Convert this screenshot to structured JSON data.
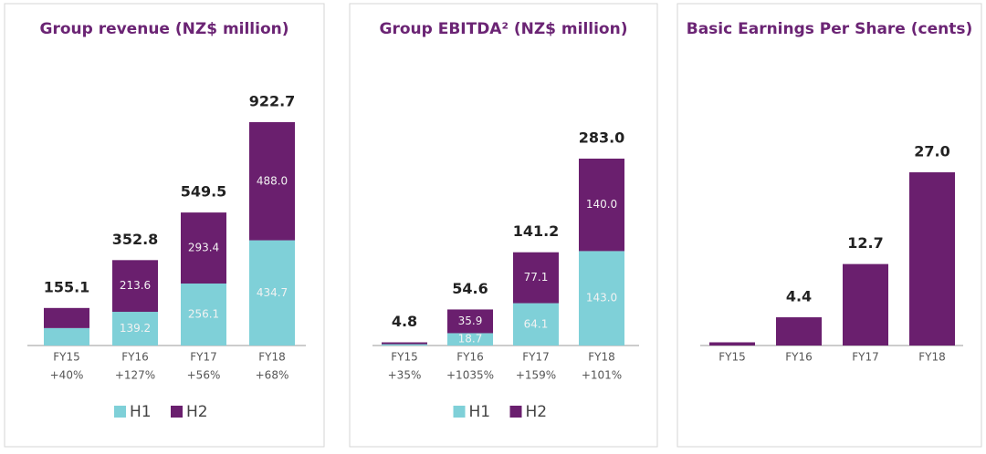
{
  "chart_data": [
    {
      "type": "bar",
      "stacked": true,
      "title": "Group revenue (NZ$ million)",
      "categories": [
        "FY15",
        "FY16",
        "FY17",
        "FY18"
      ],
      "growth": [
        "+40%",
        "+127%",
        "+56%",
        "+68%"
      ],
      "series": [
        {
          "name": "H1",
          "color": "#7fd0d8",
          "values": [
            72,
            139.2,
            256.1,
            434.7
          ],
          "value_labels": [
            null,
            "139.2",
            "256.1",
            "434.7"
          ]
        },
        {
          "name": "H2",
          "color": "#6a1f6e",
          "values": [
            83.1,
            213.6,
            293.4,
            488.0
          ],
          "value_labels": [
            null,
            "213.6",
            "293.4",
            "488.0"
          ]
        }
      ],
      "totals": [
        155.1,
        352.8,
        549.5,
        922.7
      ],
      "total_labels": [
        "155.1",
        "352.8",
        "549.5",
        "922.7"
      ]
    },
    {
      "type": "bar",
      "stacked": true,
      "title": "Group EBITDA² (NZ$ million)",
      "categories": [
        "FY15",
        "FY16",
        "FY17",
        "FY18"
      ],
      "growth": [
        "+35%",
        "+1035%",
        "+159%",
        "+101%"
      ],
      "series": [
        {
          "name": "H1",
          "color": "#7fd0d8",
          "values": [
            2.0,
            18.7,
            64.1,
            143.0
          ],
          "value_labels": [
            null,
            "18.7",
            "64.1",
            "143.0"
          ]
        },
        {
          "name": "H2",
          "color": "#6a1f6e",
          "values": [
            2.8,
            35.9,
            77.1,
            140.0
          ],
          "value_labels": [
            null,
            "35.9",
            "77.1",
            "140.0"
          ]
        }
      ],
      "totals": [
        4.8,
        54.6,
        141.2,
        283.0
      ],
      "total_labels": [
        "4.8",
        "54.6",
        "141.2",
        "283.0"
      ]
    },
    {
      "type": "bar",
      "stacked": false,
      "title": "Basic Earnings Per Share (cents)",
      "categories": [
        "FY15",
        "FY16",
        "FY17",
        "FY18"
      ],
      "color": "#6a1f6e",
      "values": [
        0.5,
        4.4,
        12.7,
        27.0
      ],
      "value_labels": [
        null,
        "4.4",
        "12.7",
        "27.0"
      ]
    }
  ]
}
